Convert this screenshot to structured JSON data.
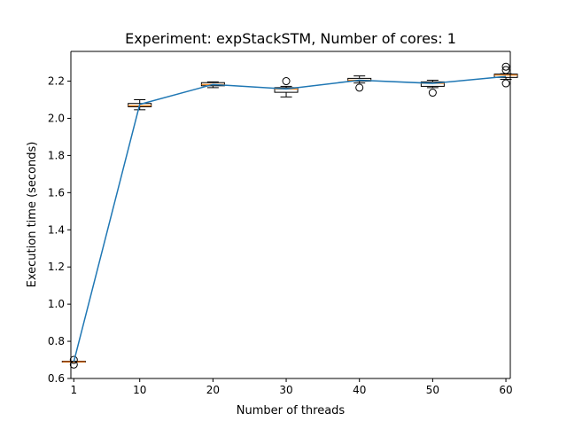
{
  "chart_data": {
    "type": "box",
    "title": "Experiment: expStackSTM, Number of cores: 1",
    "xlabel": "Number of threads",
    "ylabel": "Execution time (seconds)",
    "xlim": [
      0.6,
      60.6
    ],
    "ylim": [
      0.6,
      2.36
    ],
    "xticks": [
      1,
      10,
      20,
      30,
      40,
      50,
      60
    ],
    "yticks": [
      0.6,
      0.8,
      1.0,
      1.2,
      1.4,
      1.6,
      1.8,
      2.0,
      2.2
    ],
    "ytick_labels": [
      "0.6",
      "0.8",
      "1.0",
      "1.2",
      "1.4",
      "1.6",
      "1.8",
      "2.0",
      "2.2"
    ],
    "grid": false,
    "colors": {
      "line": "#1f77b4",
      "median": "#ff7f0e",
      "box": "#000000"
    },
    "line_series": {
      "x": [
        1,
        10,
        20,
        30,
        40,
        50,
        60
      ],
      "y": [
        0.69,
        2.075,
        2.182,
        2.158,
        2.205,
        2.188,
        2.225
      ]
    },
    "boxes": [
      {
        "x": 1,
        "whislo": 0.69,
        "q1": 0.69,
        "med": 0.69,
        "q3": 0.693,
        "whishi": 0.693,
        "fliers": [
          0.675,
          0.7
        ]
      },
      {
        "x": 10,
        "whislo": 2.046,
        "q1": 2.062,
        "med": 2.068,
        "q3": 2.08,
        "whishi": 2.1,
        "fliers": []
      },
      {
        "x": 20,
        "whislo": 2.165,
        "q1": 2.175,
        "med": 2.182,
        "q3": 2.192,
        "whishi": 2.196,
        "fliers": []
      },
      {
        "x": 30,
        "whislo": 2.115,
        "q1": 2.14,
        "med": 2.158,
        "q3": 2.165,
        "whishi": 2.172,
        "fliers": [
          2.2
        ]
      },
      {
        "x": 40,
        "whislo": 2.19,
        "q1": 2.2,
        "med": 2.205,
        "q3": 2.215,
        "whishi": 2.228,
        "fliers": [
          2.165
        ]
      },
      {
        "x": 50,
        "whislo": 2.165,
        "q1": 2.172,
        "med": 2.188,
        "q3": 2.196,
        "whishi": 2.205,
        "fliers": [
          2.138
        ]
      },
      {
        "x": 60,
        "whislo": 2.21,
        "q1": 2.22,
        "med": 2.232,
        "q3": 2.238,
        "whishi": 2.24,
        "fliers": [
          2.188,
          2.26,
          2.278
        ]
      }
    ]
  }
}
